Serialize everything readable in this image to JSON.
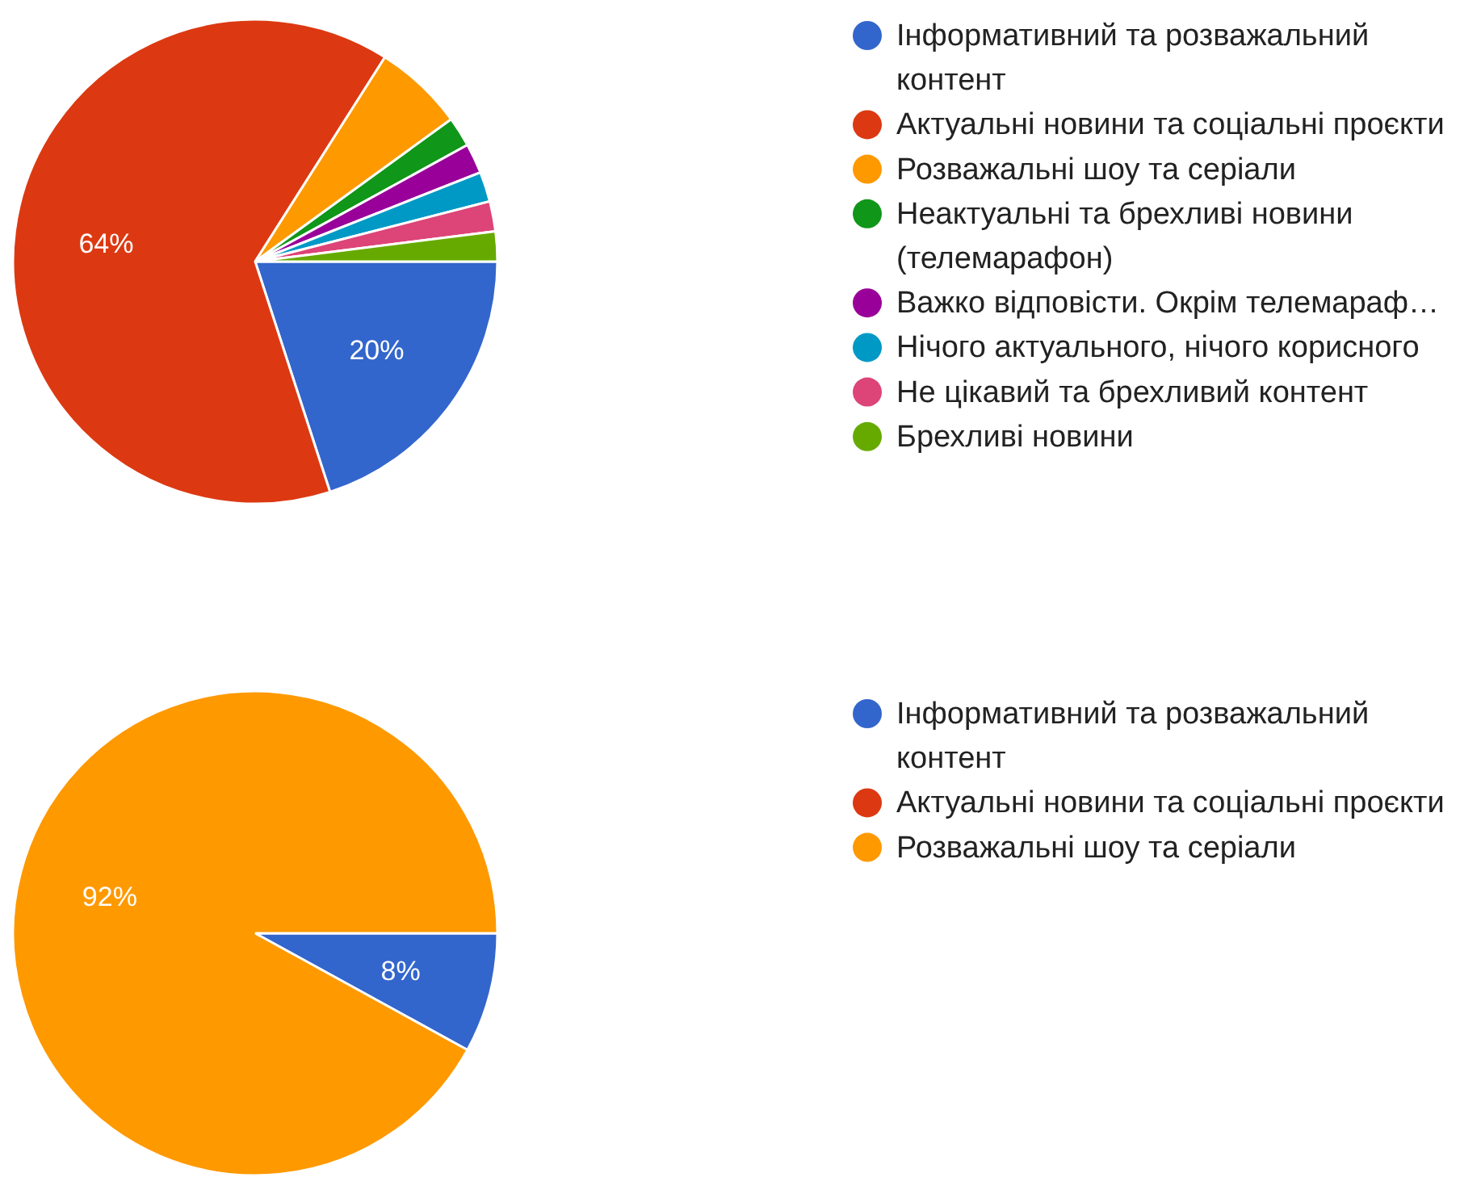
{
  "chart_data": [
    {
      "type": "pie",
      "categories": [
        "Інформативний та розважальний контент",
        "Актуальні новини та соціальні проєкти",
        "Розважальні шоу та серіали",
        "Неактуальні та брехливі новини (телемарафон)",
        "Важко відповісти. Окрім телемараф…",
        "Нічого актуального, нічого корисного",
        "Не цікавий та брехливий контент",
        "Брехливі новини"
      ],
      "values": [
        20,
        64,
        6,
        2,
        2,
        2,
        2,
        2
      ],
      "value_labels": [
        "20%",
        "64%",
        null,
        null,
        null,
        null,
        null,
        null
      ],
      "colors": [
        "#3366cc",
        "#dc3912",
        "#ff9900",
        "#109618",
        "#990099",
        "#0099c6",
        "#dd4477",
        "#66aa00"
      ],
      "legend": "right"
    },
    {
      "type": "pie",
      "categories": [
        "Інформативний та розважальний контент",
        "Актуальні новини та соціальні проєкти",
        "Розважальні шоу та серіали"
      ],
      "values": [
        8,
        0,
        92
      ],
      "value_labels": [
        "8%",
        null,
        "92%"
      ],
      "colors": [
        "#3366cc",
        "#dc3912",
        "#ff9900"
      ],
      "legend": "right"
    }
  ]
}
